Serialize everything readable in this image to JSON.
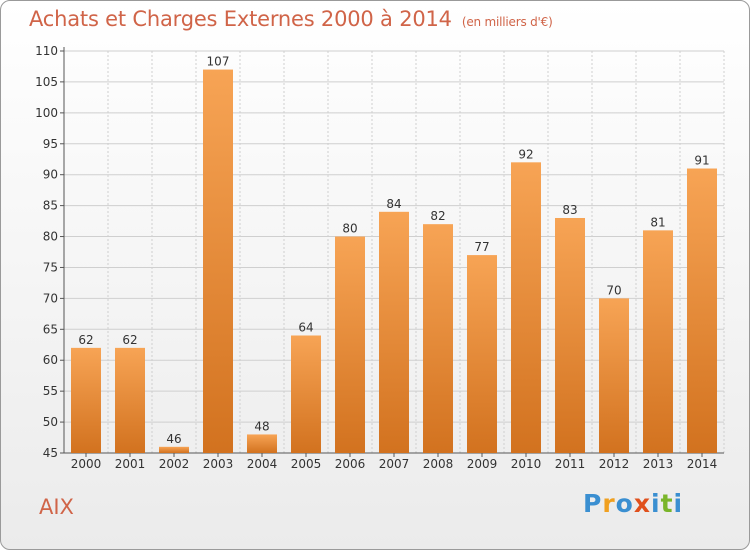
{
  "header": {
    "title": "Achats et Charges Externes 2000 à 2014",
    "subtitle": "(en milliers d'€)"
  },
  "footer": {
    "commune": "AIX",
    "logo": [
      "P",
      "r",
      "o",
      "x",
      "i",
      "t",
      "i"
    ]
  },
  "colors": {
    "bar_light": "#f7a455",
    "bar_dark": "#d2721f",
    "title": "#d06448"
  },
  "chart_data": {
    "type": "bar",
    "title": "Achats et Charges Externes 2000 à 2014",
    "subtitle": "(en milliers d'€)",
    "categories": [
      "2000",
      "2001",
      "2002",
      "2003",
      "2004",
      "2005",
      "2006",
      "2007",
      "2008",
      "2009",
      "2010",
      "2011",
      "2012",
      "2013",
      "2014"
    ],
    "values": [
      62,
      62,
      46,
      107,
      48,
      64,
      80,
      84,
      82,
      77,
      92,
      83,
      70,
      81,
      91
    ],
    "ylim": [
      45,
      110
    ],
    "yticks": [
      45,
      50,
      55,
      60,
      65,
      70,
      75,
      80,
      85,
      90,
      95,
      100,
      105,
      110
    ],
    "grid": true,
    "legend": "none",
    "data_labels": true
  }
}
